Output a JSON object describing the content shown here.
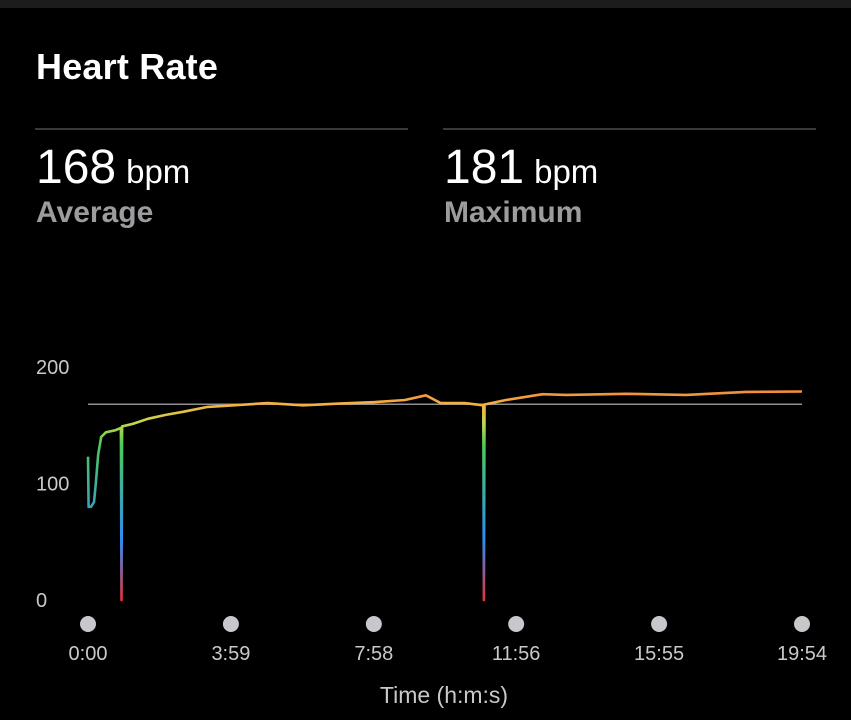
{
  "header": {
    "title": "Heart Rate"
  },
  "stats": {
    "average": {
      "value": "168",
      "unit": "bpm",
      "label": "Average"
    },
    "maximum": {
      "value": "181",
      "unit": "bpm",
      "label": "Maximum"
    }
  },
  "chart_data": {
    "type": "line",
    "xlabel": "Time (h:m:s)",
    "ylabel": "",
    "ylim": [
      0,
      200
    ],
    "xlim_seconds": [
      0,
      1194
    ],
    "y_ticks": [
      0,
      100,
      200
    ],
    "x_ticks": [
      {
        "label": "0:00",
        "seconds": 0
      },
      {
        "label": "3:59",
        "seconds": 239
      },
      {
        "label": "7:58",
        "seconds": 478
      },
      {
        "label": "11:56",
        "seconds": 716
      },
      {
        "label": "15:55",
        "seconds": 955
      },
      {
        "label": "19:54",
        "seconds": 1194
      }
    ],
    "reference_line": {
      "value": 168,
      "meaning": "average"
    },
    "series": [
      {
        "values_bpm": [
          {
            "t": 0,
            "bpm": 123
          },
          {
            "t": 1,
            "bpm": 80
          },
          {
            "t": 5,
            "bpm": 80
          },
          {
            "t": 10,
            "bpm": 84
          },
          {
            "t": 13,
            "bpm": 100
          },
          {
            "t": 17,
            "bpm": 125
          },
          {
            "t": 22,
            "bpm": 140
          },
          {
            "t": 30,
            "bpm": 144
          },
          {
            "t": 45,
            "bpm": 146
          },
          {
            "t": 55,
            "bpm": 147
          },
          {
            "t": 56,
            "bpm": 0
          },
          {
            "t": 57,
            "bpm": 148
          },
          {
            "t": 75,
            "bpm": 152
          },
          {
            "t": 100,
            "bpm": 155
          },
          {
            "t": 130,
            "bpm": 159
          },
          {
            "t": 160,
            "bpm": 162
          },
          {
            "t": 200,
            "bpm": 165
          },
          {
            "t": 240,
            "bpm": 168
          },
          {
            "t": 300,
            "bpm": 168
          },
          {
            "t": 360,
            "bpm": 168
          },
          {
            "t": 420,
            "bpm": 168
          },
          {
            "t": 480,
            "bpm": 170
          },
          {
            "t": 530,
            "bpm": 172
          },
          {
            "t": 565,
            "bpm": 175
          },
          {
            "t": 590,
            "bpm": 170
          },
          {
            "t": 630,
            "bpm": 168
          },
          {
            "t": 661,
            "bpm": 168
          },
          {
            "t": 662,
            "bpm": 0
          },
          {
            "t": 663,
            "bpm": 168
          },
          {
            "t": 700,
            "bpm": 172
          },
          {
            "t": 760,
            "bpm": 176
          },
          {
            "t": 800,
            "bpm": 177
          },
          {
            "t": 900,
            "bpm": 176
          },
          {
            "t": 1000,
            "bpm": 177
          },
          {
            "t": 1100,
            "bpm": 178
          },
          {
            "t": 1194,
            "bpm": 179
          }
        ]
      }
    ],
    "colors": {
      "line_gradient": [
        "#e5333f",
        "#2f8cf2",
        "#4fc95b",
        "#c2d94d",
        "#f5b042",
        "#f07a38"
      ],
      "reference_line": "#8e8e93",
      "tick_dot": "#c7c7cc"
    }
  }
}
